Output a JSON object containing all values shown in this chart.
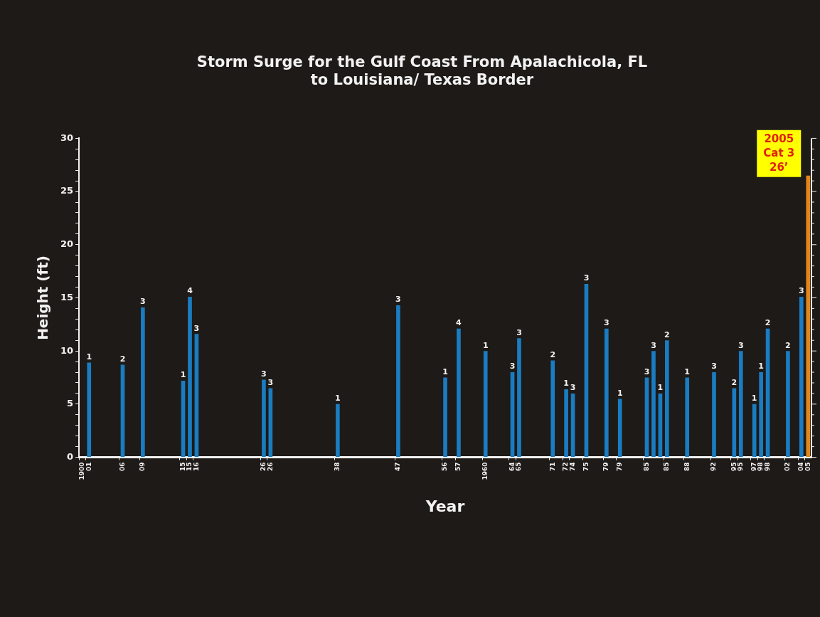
{
  "chart_data": {
    "type": "bar",
    "title": "Storm Surge for the Gulf Coast From Apalachicola, FL\nto Louisiana/ Texas Border",
    "xlabel": "Year",
    "ylabel": "Height (ft)",
    "categories": [
      "1900",
      "01",
      null,
      null,
      null,
      null,
      "06",
      null,
      null,
      "09",
      null,
      null,
      null,
      null,
      null,
      "15",
      "15",
      "16",
      null,
      null,
      null,
      null,
      null,
      null,
      null,
      null,
      null,
      "26",
      "26",
      null,
      null,
      null,
      null,
      null,
      null,
      null,
      null,
      null,
      "38",
      null,
      null,
      null,
      null,
      null,
      null,
      null,
      null,
      "47",
      null,
      null,
      null,
      null,
      null,
      null,
      "56",
      null,
      "57",
      null,
      null,
      null,
      "1960",
      null,
      null,
      null,
      "64",
      "65",
      null,
      null,
      null,
      null,
      "71",
      null,
      "72",
      "74",
      null,
      "75",
      null,
      null,
      "79",
      null,
      "79",
      null,
      null,
      null,
      "85",
      null,
      null,
      "85",
      null,
      null,
      "88",
      null,
      null,
      null,
      "92",
      null,
      null,
      "95",
      "95",
      null,
      "97",
      "98",
      "98",
      null,
      null,
      "02",
      null,
      "04",
      "05"
    ],
    "values": [
      null,
      8.9,
      null,
      null,
      null,
      null,
      8.7,
      null,
      null,
      14.1,
      null,
      null,
      null,
      null,
      null,
      7.2,
      15.1,
      11.6,
      null,
      null,
      null,
      null,
      null,
      null,
      null,
      null,
      null,
      7.3,
      6.5,
      null,
      null,
      null,
      null,
      null,
      null,
      null,
      null,
      null,
      5.0,
      null,
      null,
      null,
      null,
      null,
      null,
      null,
      null,
      14.3,
      null,
      null,
      null,
      null,
      null,
      null,
      7.5,
      null,
      12.1,
      null,
      null,
      null,
      10.0,
      null,
      null,
      null,
      8.0,
      11.2,
      null,
      null,
      null,
      null,
      9.1,
      null,
      6.4,
      6.0,
      null,
      16.3,
      null,
      null,
      12.1,
      null,
      5.5,
      null,
      null,
      null,
      7.5,
      10.0,
      6.0,
      11.0,
      null,
      null,
      7.5,
      null,
      null,
      null,
      8.0,
      null,
      null,
      6.5,
      10.0,
      null,
      5.0,
      8.0,
      12.1,
      null,
      null,
      10.0,
      null,
      15.1,
      26.5
    ],
    "colors": [
      null,
      "#1a7cc1",
      null,
      null,
      null,
      null,
      "#1a7cc1",
      null,
      null,
      "#1a7cc1",
      null,
      null,
      null,
      null,
      null,
      "#1a7cc1",
      "#1a7cc1",
      "#1a7cc1",
      null,
      null,
      null,
      null,
      null,
      null,
      null,
      null,
      null,
      "#1a7cc1",
      "#1a7cc1",
      null,
      null,
      null,
      null,
      null,
      null,
      null,
      null,
      null,
      "#1a7cc1",
      null,
      null,
      null,
      null,
      null,
      null,
      null,
      null,
      "#1a7cc1",
      null,
      null,
      null,
      null,
      null,
      null,
      "#1a7cc1",
      null,
      "#1a7cc1",
      null,
      null,
      null,
      "#1a7cc1",
      null,
      null,
      null,
      "#1a7cc1",
      "#1a7cc1",
      null,
      null,
      null,
      null,
      "#1a7cc1",
      null,
      "#1a7cc1",
      "#1a7cc1",
      null,
      "#1a7cc1",
      null,
      null,
      "#1a7cc1",
      null,
      "#1a7cc1",
      null,
      null,
      null,
      "#1a7cc1",
      "#1a7cc1",
      "#1a7cc1",
      "#1a7cc1",
      null,
      null,
      "#1a7cc1",
      null,
      null,
      null,
      "#1a7cc1",
      null,
      null,
      "#1a7cc1",
      "#1a7cc1",
      null,
      "#1a7cc1",
      "#1a7cc1",
      "#1a7cc1",
      null,
      null,
      "#1a7cc1",
      null,
      "#1a7cc1",
      "#e0861c"
    ],
    "ylim": [
      0,
      30
    ],
    "yticks": [
      0,
      {
        "value": 1,
        "label": null
      },
      {
        "value": 2,
        "label": null
      },
      {
        "value": 3,
        "label": null
      },
      {
        "value": 4,
        "label": null
      },
      5,
      {
        "value": 6,
        "label": null
      },
      {
        "value": 7,
        "label": null
      },
      {
        "value": 8,
        "label": null
      },
      {
        "value": 9,
        "label": null
      },
      10,
      {
        "value": 11,
        "label": null
      },
      {
        "value": 12,
        "label": null
      },
      {
        "value": 13,
        "label": null
      },
      {
        "value": 14,
        "label": null
      },
      15,
      {
        "value": 16,
        "label": null
      },
      {
        "value": 17,
        "label": null
      },
      {
        "value": 18,
        "label": null
      },
      {
        "value": 19,
        "label": null
      },
      20,
      {
        "value": 21,
        "label": null
      },
      {
        "value": 22,
        "label": null
      },
      {
        "value": 23,
        "label": null
      },
      {
        "value": 24,
        "label": null
      },
      25,
      {
        "value": 26,
        "label": null
      },
      {
        "value": 27,
        "label": null
      },
      {
        "value": 28,
        "label": null
      },
      {
        "value": 29,
        "label": null
      },
      30
    ],
    "annotations": [
      {
        "text": "1",
        "x": "01",
        "y": 8.9
      },
      {
        "text": "2",
        "x": "06",
        "y": 8.7
      },
      {
        "text": "3",
        "x": "09",
        "y": 14.1
      },
      "1",
      "4",
      {
        "text": "3",
        "x": "16",
        "y": 11.6
      },
      "3",
      "3",
      {
        "text": "1",
        "x": "38",
        "y": 5.0
      },
      {
        "text": "3",
        "x": "47",
        "y": 14.3
      },
      {
        "text": "1",
        "x": "56",
        "y": 7.5
      },
      {
        "text": "4",
        "x": "57",
        "y": 12.1
      },
      {
        "text": "1",
        "x": "1960",
        "y": 10.0
      },
      {
        "text": "3",
        "x": "64",
        "y": 8.0
      },
      {
        "text": "3",
        "x": "65",
        "y": 11.2
      },
      {
        "text": "2",
        "x": "71",
        "y": 9.1
      },
      {
        "text": "1",
        "x": "72",
        "y": 6.4
      },
      {
        "text": "3",
        "x": "74",
        "y": 6.0
      },
      {
        "text": "3",
        "x": "75",
        "y": 16.3
      },
      "3",
      "1",
      "3",
      "3",
      "1",
      "2",
      {
        "text": "1",
        "x": "88",
        "y": 7.5
      },
      {
        "text": "3",
        "x": "92",
        "y": 8.0
      },
      "2",
      "3",
      {
        "text": "1",
        "x": "97",
        "y": 5.0
      },
      "1",
      "2",
      {
        "text": "2",
        "x": "02",
        "y": 10.0
      },
      {
        "text": "3",
        "x": "04",
        "y": 15.1
      },
      {
        "text": "2005\nCat 3\n26’",
        "x": "05",
        "y": 26.5
      }
    ],
    "grid": false,
    "legend": false
  }
}
